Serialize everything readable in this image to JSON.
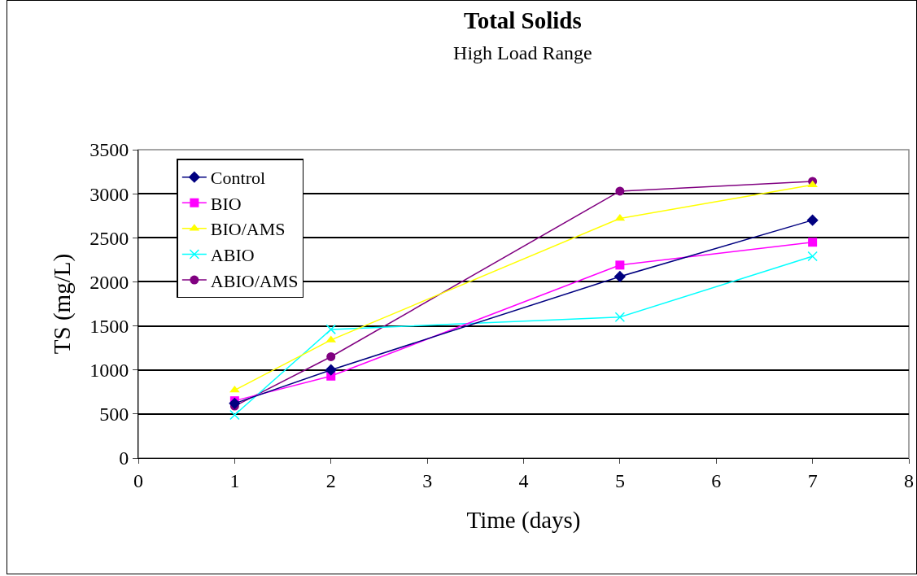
{
  "chart_data": {
    "type": "line",
    "title": "Total Solids",
    "subtitle": "High Load Range",
    "xlabel": "Time (days)",
    "ylabel": "TS (mg/L)",
    "x": [
      1,
      2,
      5,
      7
    ],
    "xlim": [
      0,
      8
    ],
    "xticks": [
      0,
      1,
      2,
      3,
      4,
      5,
      6,
      7,
      8
    ],
    "ylim": [
      0,
      3500
    ],
    "yticks": [
      0,
      500,
      1000,
      1500,
      2000,
      2500,
      3000,
      3500
    ],
    "grid": "y",
    "legend": "top left",
    "series": [
      {
        "name": "Control",
        "color": "#000080",
        "marker": "diamond",
        "values": [
          620,
          1000,
          2060,
          2700
        ]
      },
      {
        "name": "BIO",
        "color": "#ff00ff",
        "marker": "square",
        "values": [
          650,
          930,
          2190,
          2450
        ]
      },
      {
        "name": "BIO/AMS",
        "color": "#ffff00",
        "marker": "triangle",
        "values": [
          770,
          1340,
          2720,
          3100
        ]
      },
      {
        "name": "ABIO",
        "color": "#00ffff",
        "marker": "cross",
        "values": [
          490,
          1460,
          1600,
          2290
        ]
      },
      {
        "name": "ABIO/AMS",
        "color": "#800080",
        "marker": "circle",
        "values": [
          590,
          1150,
          3030,
          3140
        ]
      }
    ]
  }
}
